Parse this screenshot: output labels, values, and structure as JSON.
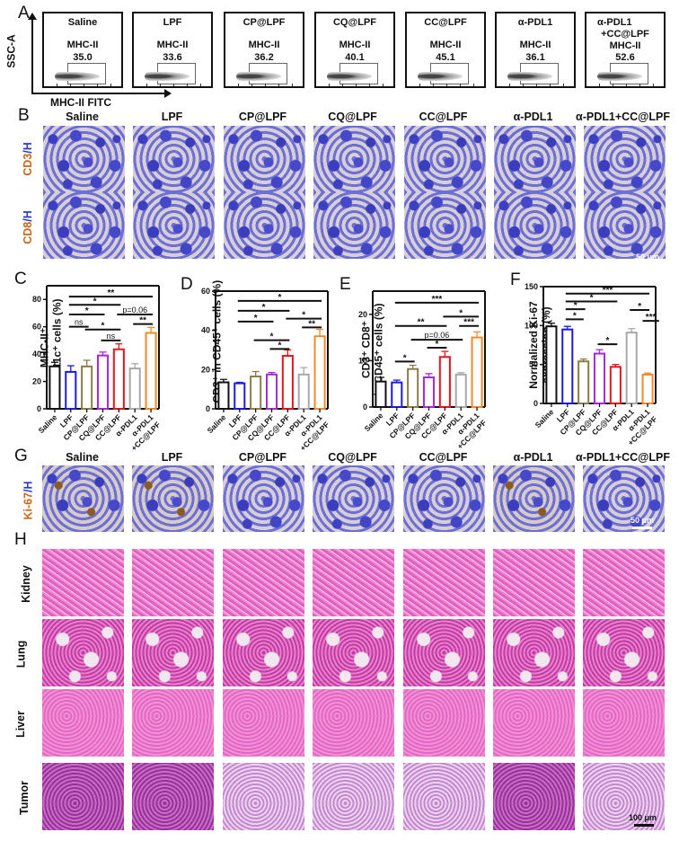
{
  "groups": [
    "Saline",
    "LPF",
    "CP@LPF",
    "CQ@LPF",
    "CC@LPF",
    "α-PDL1",
    "α-PDL1+CC@LPF"
  ],
  "group_colors": [
    "#111111",
    "#1a1ae0",
    "#8b7d4a",
    "#a52ad6",
    "#e8141c",
    "#a8a8a8",
    "#f28a2a"
  ],
  "panelA": {
    "letter": "A",
    "y_axis": "SSC-A",
    "x_axis": "MHC-II FITC",
    "plots": [
      {
        "title": "Saline",
        "marker": "MHC-II",
        "value": "35.0"
      },
      {
        "title": "LPF",
        "marker": "MHC-II",
        "value": "33.6"
      },
      {
        "title": "CP@LPF",
        "marker": "MHC-II",
        "value": "36.2"
      },
      {
        "title": "CQ@LPF",
        "marker": "MHC-II",
        "value": "40.1"
      },
      {
        "title": "CC@LPF",
        "marker": "MHC-II",
        "value": "45.1"
      },
      {
        "title": "α-PDL1",
        "marker": "MHC-II",
        "value": "36.1"
      },
      {
        "title": "α-PDL1\n+CC@LPF",
        "title_line1": "α-PDL1",
        "title_line2": "+CC@LPF",
        "marker": "MHC-II",
        "value": "52.6"
      }
    ]
  },
  "panelB": {
    "letter": "B",
    "columns": [
      "Saline",
      "LPF",
      "CP@LPF",
      "CQ@LPF",
      "CC@LPF",
      "α-PDL1",
      "α-PDL1+CC@LPF"
    ],
    "rows": [
      {
        "stain": "CD3",
        "counter": "/H"
      },
      {
        "stain": "CD8",
        "counter": "/H"
      }
    ],
    "scale_bar": "50 μm"
  },
  "panelG": {
    "letter": "G",
    "columns": [
      "Saline",
      "LPF",
      "CP@LPF",
      "CQ@LPF",
      "CC@LPF",
      "α-PDL1",
      "α-PDL1+CC@LPF"
    ],
    "row": {
      "stain": "Ki-67",
      "counter": "/H"
    },
    "scale_bar": "50 μm"
  },
  "panelH": {
    "letter": "H",
    "rows": [
      "Kidney",
      "Lung",
      "Liver",
      "Tumor"
    ],
    "scale_bar": "100 μm"
  },
  "chart_data": [
    {
      "panel": "C",
      "type": "bar",
      "title": "",
      "ylabel_line1": "MHC-II⁺",
      "ylabel_line2": "in CD11c⁺ cells (%)",
      "ylabel": "MHC-II+ in CD11c+ cells (%)",
      "xlabel": "",
      "categories": [
        "Saline",
        "LPF",
        "CP@LPF",
        "CQ@LPF",
        "CC@LPF",
        "α-PDL1",
        "α-PDL1+CC@LPF"
      ],
      "values": [
        31,
        27,
        31,
        39,
        43.5,
        29.5,
        55.5
      ],
      "errors": [
        3,
        4.5,
        4.5,
        2.5,
        4,
        3.5,
        4
      ],
      "ylim": [
        0,
        90
      ],
      "yticks": [
        0,
        20,
        40,
        60,
        80
      ],
      "significance": [
        {
          "from": 1,
          "to": 6,
          "label": "**",
          "y": 82
        },
        {
          "from": 1,
          "to": 4,
          "label": "*",
          "y": 76
        },
        {
          "from": 1,
          "to": 3,
          "label": "*",
          "y": 69
        },
        {
          "from": 4,
          "to": 6,
          "label": "p=0.06",
          "y": 69
        },
        {
          "from": 1,
          "to": 2,
          "label": "ns",
          "y": 60
        },
        {
          "from": 2,
          "to": 4,
          "label": "*",
          "y": 58
        },
        {
          "from": 3,
          "to": 4,
          "label": "ns",
          "y": 50
        },
        {
          "from": 5,
          "to": 6,
          "label": "**",
          "y": 62
        }
      ]
    },
    {
      "panel": "D",
      "type": "bar",
      "ylabel": "CD3+ in CD45+ cells (%)",
      "ylabel_line1": "CD3⁺ in CD45⁺ cells (%)",
      "xlabel": "",
      "categories": [
        "Saline",
        "LPF",
        "CP@LPF",
        "CQ@LPF",
        "CC@LPF",
        "α-PDL1",
        "α-PDL1+CC@LPF"
      ],
      "values": [
        13.5,
        13,
        16.5,
        17.5,
        27,
        17.5,
        37
      ],
      "errors": [
        1.5,
        0.5,
        2.5,
        1,
        3,
        3.5,
        3.5
      ],
      "ylim": [
        0,
        60
      ],
      "yticks": [
        0,
        20,
        40,
        60
      ],
      "significance": [
        {
          "from": 1,
          "to": 6,
          "label": "*",
          "y": 55
        },
        {
          "from": 1,
          "to": 4,
          "label": "*",
          "y": 50
        },
        {
          "from": 1,
          "to": 3,
          "label": "*",
          "y": 44.5
        },
        {
          "from": 4,
          "to": 6,
          "label": "*",
          "y": 46
        },
        {
          "from": 5,
          "to": 6,
          "label": "**",
          "y": 41.5
        },
        {
          "from": 2,
          "to": 4,
          "label": "*",
          "y": 35
        },
        {
          "from": 3,
          "to": 4,
          "label": "*",
          "y": 30.5
        }
      ]
    },
    {
      "panel": "E",
      "type": "bar",
      "ylabel": "CD3+ CD8+ in CD45+ cells (%)",
      "ylabel_line1": "CD3⁺ CD8⁺",
      "ylabel_line2": "in CD45⁺ cells (%)",
      "xlabel": "",
      "categories": [
        "Saline",
        "LPF",
        "CP@LPF",
        "CQ@LPF",
        "CC@LPF",
        "α-PDL1",
        "α-PDL1+CC@LPF"
      ],
      "values": [
        5.5,
        5.3,
        8.2,
        6.4,
        10.8,
        7.0,
        15.0
      ],
      "errors": [
        0.9,
        0.5,
        0.8,
        0.8,
        1.2,
        0.4,
        1.2
      ],
      "ylim": [
        0,
        25
      ],
      "yticks": [
        0,
        10,
        20
      ],
      "significance": [
        {
          "from": 1,
          "to": 6,
          "label": "***",
          "y": 22.5
        },
        {
          "from": 1,
          "to": 4,
          "label": "**",
          "y": 17.5
        },
        {
          "from": 4,
          "to": 6,
          "label": "*",
          "y": 19.5
        },
        {
          "from": 5,
          "to": 6,
          "label": "***",
          "y": 17.5
        },
        {
          "from": 2,
          "to": 5,
          "label": "p=0.06",
          "y": 14.5
        },
        {
          "from": 3,
          "to": 4,
          "label": "*",
          "y": 12.8
        },
        {
          "from": 1,
          "to": 2,
          "label": "*",
          "y": 9.8
        }
      ]
    },
    {
      "panel": "F",
      "type": "bar",
      "ylabel": "Normalized Ki-67 expression (%)",
      "ylabel_line1": "Normalized Ki-67",
      "ylabel_line2": "expression (%)",
      "xlabel": "",
      "categories": [
        "Saline",
        "LPF",
        "CP@LPF",
        "CQ@LPF",
        "CC@LPF",
        "α-PDL1",
        "α-PDL1+CC@LPF"
      ],
      "values": [
        99,
        95,
        54,
        64,
        47,
        91,
        37
      ],
      "errors": [
        4,
        4,
        3,
        5,
        3,
        5,
        2
      ],
      "ylim": [
        0,
        150
      ],
      "yticks": [
        0,
        50,
        100,
        150
      ],
      "significance": [
        {
          "from": 1,
          "to": 6,
          "label": "***",
          "y": 141
        },
        {
          "from": 1,
          "to": 4,
          "label": "*",
          "y": 131
        },
        {
          "from": 1,
          "to": 2,
          "label": "*",
          "y": 121
        },
        {
          "from": 1,
          "to": 1.9,
          "label": "*",
          "y": 108
        },
        {
          "from": 5,
          "to": 6,
          "label": "*",
          "y": 120
        },
        {
          "from": 5.8,
          "to": 6.6,
          "label": "***",
          "y": 106
        },
        {
          "from": 3,
          "to": 4,
          "label": "*",
          "y": 76
        }
      ]
    }
  ]
}
